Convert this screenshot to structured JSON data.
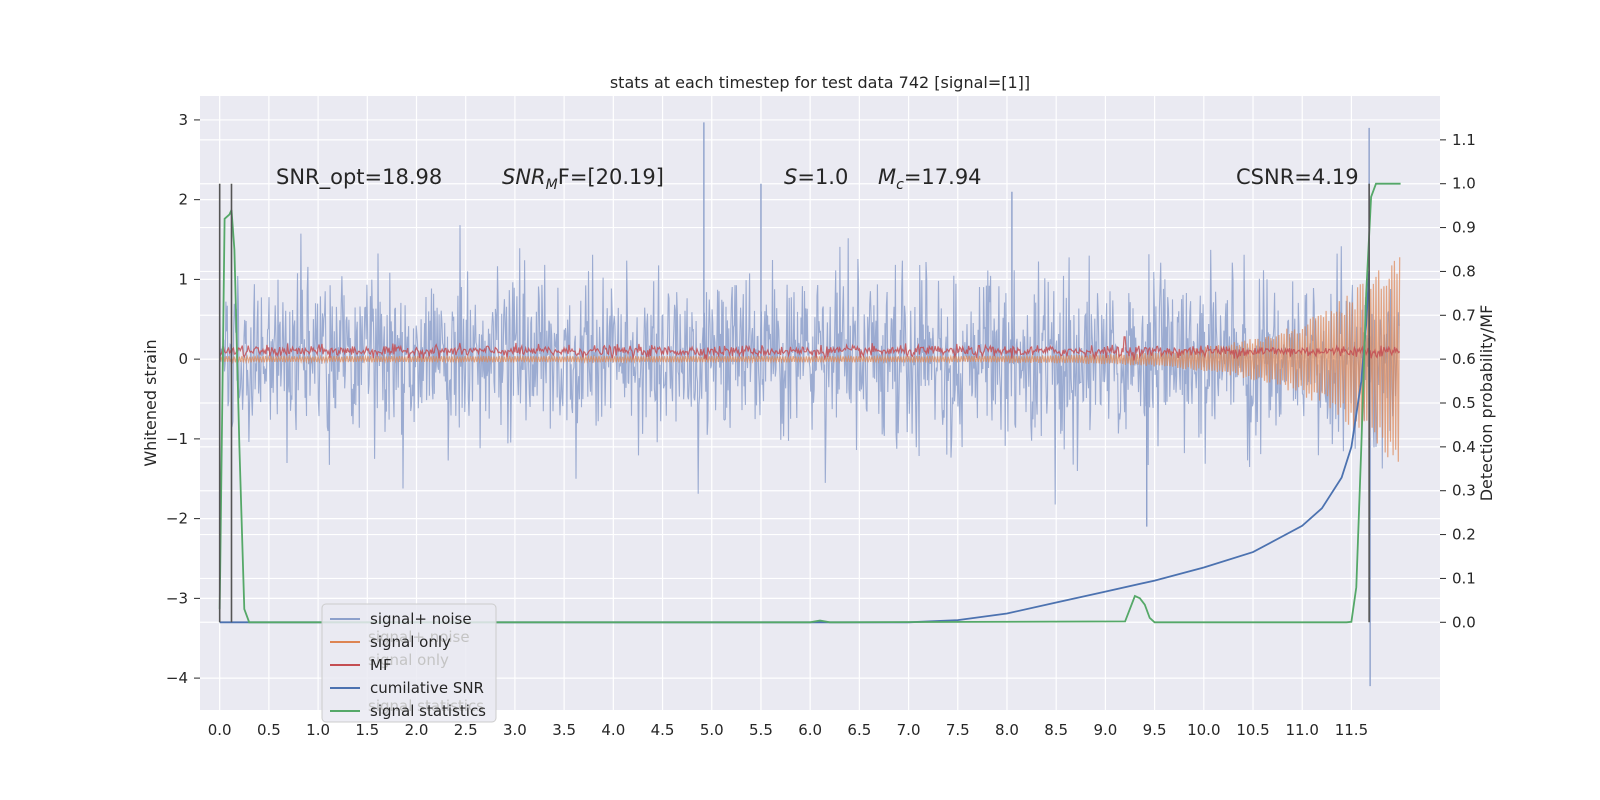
{
  "chart_data": {
    "type": "line",
    "title": "stats at each timestep for test data 742 [signal=[1]]",
    "ylabel": "Whitened strain",
    "ylabel_right": "Detection probability/MF",
    "xlim": [
      -0.2,
      12.4
    ],
    "ylim": [
      -4.4,
      3.3
    ],
    "ylim_right": [
      -0.2,
      1.2
    ],
    "x_ticks": [
      0.0,
      0.5,
      1.0,
      1.5,
      2.0,
      2.5,
      3.0,
      3.5,
      4.0,
      4.5,
      5.0,
      5.5,
      6.0,
      6.5,
      7.0,
      7.5,
      8.0,
      8.5,
      9.0,
      9.5,
      10.0,
      10.5,
      11.0,
      11.5
    ],
    "x_tick_labels": [
      "0.0",
      "0.5",
      "1.0",
      "1.5",
      "2.0",
      "2.5",
      "3.0",
      "3.5",
      "4.0",
      "4.5",
      "5.0",
      "5.5",
      "6.0",
      "6.5",
      "7.0",
      "7.5",
      "8.0",
      "8.5",
      "9.0",
      "9.5",
      "10.0",
      "10.5",
      "11.0",
      "11.5"
    ],
    "y_ticks": [
      -4,
      -3,
      -2,
      -1,
      0,
      1,
      2,
      3
    ],
    "y_tick_labels": [
      "−4",
      "−3",
      "−2",
      "−1",
      "0",
      "1",
      "2",
      "3"
    ],
    "y_right_ticks": [
      0.0,
      0.1,
      0.2,
      0.3,
      0.4,
      0.5,
      0.6,
      0.7,
      0.8,
      0.9,
      1.0,
      1.1
    ],
    "y_right_tick_labels": [
      "0.0",
      "0.1",
      "0.2",
      "0.3",
      "0.4",
      "0.5",
      "0.6",
      "0.7",
      "0.8",
      "0.9",
      "1.0",
      "1.1"
    ],
    "grid": true,
    "legend_position": "bottom-left",
    "series": [
      {
        "name": "signal+ noise",
        "axis": "left",
        "color": "#8da0cb",
        "x_range": [
          0.0,
          11.99
        ],
        "approx_envelope": [
          -1.3,
          1.3
        ],
        "peak_max": 2.97,
        "peak_min": -4.1
      },
      {
        "name": "signal only",
        "axis": "left",
        "color": "#dd8452",
        "x_range": [
          0.0,
          11.99
        ],
        "approx_envelope_start": [
          -0.04,
          0.04
        ],
        "approx_envelope_end": [
          -1.5,
          1.5
        ]
      },
      {
        "name": "MF",
        "axis": "left",
        "color": "#c44e52",
        "x_range": [
          0.0,
          11.99
        ],
        "approx_level": [
          0.05,
          0.16
        ]
      },
      {
        "name": "cumilative SNR",
        "axis": "right",
        "color": "#4c72b0",
        "x": [
          0.0,
          7.0,
          7.5,
          8.0,
          8.5,
          9.0,
          9.5,
          10.0,
          10.5,
          11.0,
          11.2,
          11.4,
          11.5,
          11.6,
          11.65,
          11.68
        ],
        "y": [
          0.0,
          0.0,
          0.005,
          0.02,
          0.045,
          0.07,
          0.095,
          0.125,
          0.16,
          0.22,
          0.26,
          0.33,
          0.4,
          0.55,
          0.68,
          0.8
        ]
      },
      {
        "name": "signal statistics",
        "axis": "right",
        "color": "#55a868",
        "x": [
          0.0,
          0.05,
          0.1,
          0.12,
          0.15,
          0.2,
          0.25,
          0.3,
          6.0,
          6.1,
          6.2,
          6.3,
          9.2,
          9.3,
          9.35,
          9.4,
          9.45,
          9.5,
          9.6,
          11.4,
          11.45,
          11.5,
          11.55,
          11.6,
          11.65,
          11.7,
          11.75,
          11.8,
          11.85,
          11.9,
          12.0
        ],
        "y": [
          0.03,
          0.92,
          0.93,
          0.94,
          0.85,
          0.4,
          0.03,
          0.0,
          0.0,
          0.004,
          0.0,
          0.0,
          0.002,
          0.06,
          0.055,
          0.04,
          0.01,
          0.0,
          0.0,
          0.0,
          0.0,
          0.001,
          0.08,
          0.4,
          0.75,
          0.97,
          1.0,
          1.0,
          1.0,
          1.0,
          1.0
        ]
      }
    ],
    "vertical_lines": [
      {
        "x": 0.0,
        "y_from": 0.0,
        "y_to": 1.0,
        "color": "#555555"
      },
      {
        "x": 0.12,
        "y_from": 0.0,
        "y_to": 1.0,
        "color": "#555555"
      },
      {
        "x": 11.68,
        "y_from": 0.0,
        "y_to": 1.0,
        "color": "#555555"
      }
    ],
    "annotations": [
      {
        "text": "SNR_opt=18.98",
        "x": 0.2,
        "y_right": 1.0
      },
      {
        "text": "SNR_MF=[20.19]",
        "x": 2.6,
        "y_right": 1.0
      },
      {
        "text": "S=1.0",
        "x": 5.6,
        "y_right": 1.0
      },
      {
        "text": "M_c=17.94",
        "x": 6.6,
        "y_right": 1.0
      },
      {
        "text": "CSNR=4.19",
        "x": 10.4,
        "y_right": 1.0
      }
    ],
    "legend_ghost_labels": [
      "signal+ noise",
      "signal only",
      "signal statistics"
    ]
  },
  "annotation_parts": {
    "snr_opt": "SNR_opt=18.98",
    "snr_mf_main": "SNR",
    "snr_mf_sub": "M",
    "snr_mf_rest": "F=[20.19]",
    "s_sym": "S",
    "s_rest": "=1.0",
    "mc_sym": "M",
    "mc_sub": "c",
    "mc_rest": "=17.94",
    "csnr": "CSNR=4.19"
  }
}
